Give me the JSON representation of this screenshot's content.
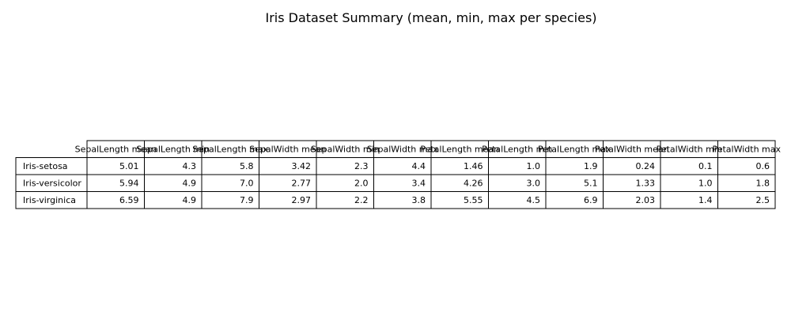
{
  "chart_data": {
    "type": "table",
    "title": "Iris Dataset Summary (mean, min, max per species)",
    "columns": [
      "SepalLength mean",
      "SepalLength min",
      "SepalLength max",
      "SepalWidth mean",
      "SepalWidth min",
      "SepalWidth max",
      "PetalLength mean",
      "PetalLength min",
      "PetalLength max",
      "PetalWidth mean",
      "PetalWidth min",
      "PetalWidth max"
    ],
    "rows": [
      {
        "label": "Iris-setosa",
        "values": [
          "5.01",
          "4.3",
          "5.8",
          "3.42",
          "2.3",
          "4.4",
          "1.46",
          "1.0",
          "1.9",
          "0.24",
          "0.1",
          "0.6"
        ]
      },
      {
        "label": "Iris-versicolor",
        "values": [
          "5.94",
          "4.9",
          "7.0",
          "2.77",
          "2.0",
          "3.4",
          "4.26",
          "3.0",
          "5.1",
          "1.33",
          "1.0",
          "1.8"
        ]
      },
      {
        "label": "Iris-virginica",
        "values": [
          "6.59",
          "4.9",
          "7.9",
          "2.97",
          "2.2",
          "3.8",
          "5.55",
          "4.5",
          "6.9",
          "2.03",
          "1.4",
          "2.5"
        ]
      }
    ]
  }
}
